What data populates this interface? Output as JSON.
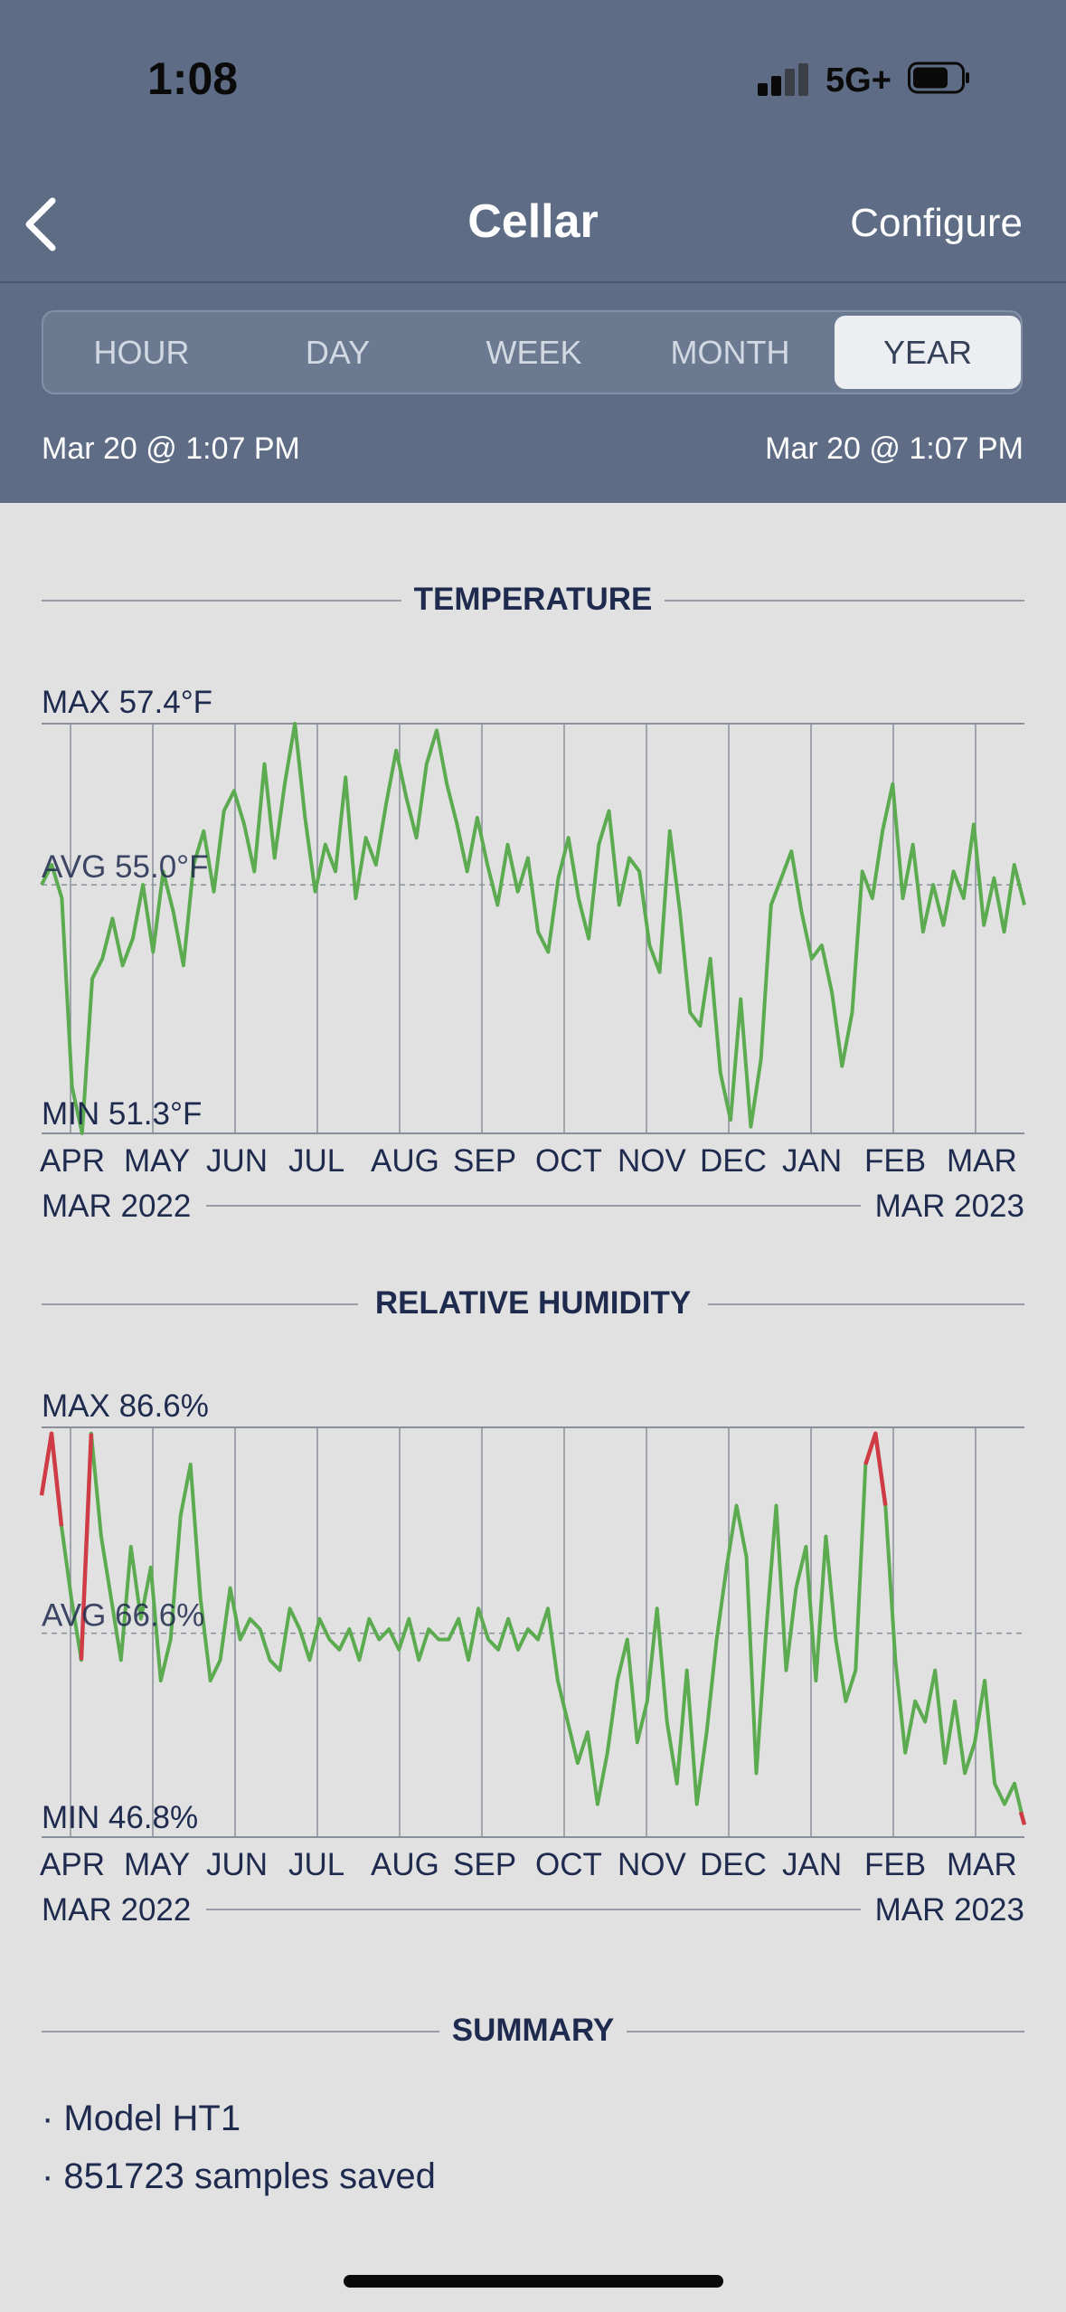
{
  "status": {
    "time": "1:08",
    "network": "5G+"
  },
  "nav": {
    "title": "Cellar",
    "configure": "Configure"
  },
  "tabs": [
    {
      "label": "HOUR"
    },
    {
      "label": "DAY"
    },
    {
      "label": "WEEK"
    },
    {
      "label": "MONTH"
    },
    {
      "label": "YEAR",
      "active": true
    }
  ],
  "range": {
    "start": "Mar 20 @ 1:07 PM",
    "end": "Mar 20 @ 1:07 PM"
  },
  "months": [
    "APR",
    "MAY",
    "JUN",
    "JUL",
    "AUG",
    "SEP",
    "OCT",
    "NOV",
    "DEC",
    "JAN",
    "FEB",
    "MAR"
  ],
  "period": {
    "start": "MAR 2022",
    "end": "MAR 2023"
  },
  "colors": {
    "line": "#5cab51",
    "alert": "#cf3c45",
    "header": "#5e6d85"
  },
  "sections": {
    "temperature": "TEMPERATURE",
    "humidity": "RELATIVE HUMIDITY",
    "summary": "SUMMARY"
  },
  "chart_data": [
    {
      "type": "line",
      "title": "TEMPERATURE",
      "max_label": "MAX 57.4°F",
      "avg_label": "AVG 55.0°F",
      "min_label": "MIN 51.3°F",
      "ylim": [
        51.3,
        57.4
      ],
      "avg": 55.0,
      "x_label_start": "MAR 2022",
      "x_label_end": "MAR 2023",
      "months": [
        "APR",
        "MAY",
        "JUN",
        "JUL",
        "AUG",
        "SEP",
        "OCT",
        "NOV",
        "DEC",
        "JAN",
        "FEB",
        "MAR"
      ],
      "values": [
        55.0,
        55.3,
        54.8,
        52.0,
        51.3,
        53.6,
        53.9,
        54.5,
        53.8,
        54.2,
        55.0,
        54.0,
        55.2,
        54.6,
        53.8,
        55.3,
        55.8,
        54.9,
        56.1,
        56.4,
        55.9,
        55.2,
        56.8,
        55.4,
        56.5,
        57.4,
        56.0,
        54.9,
        55.6,
        55.2,
        56.6,
        54.8,
        55.7,
        55.3,
        56.2,
        57.0,
        56.3,
        55.7,
        56.8,
        57.3,
        56.5,
        55.9,
        55.2,
        56.0,
        55.3,
        54.7,
        55.6,
        54.9,
        55.4,
        54.3,
        54.0,
        55.1,
        55.7,
        54.8,
        54.2,
        55.6,
        56.1,
        54.7,
        55.4,
        55.2,
        54.1,
        53.7,
        55.8,
        54.6,
        53.1,
        52.9,
        53.9,
        52.2,
        51.5,
        53.3,
        51.4,
        52.4,
        54.7,
        55.1,
        55.5,
        54.6,
        53.9,
        54.1,
        53.4,
        52.3,
        53.1,
        55.2,
        54.8,
        55.8,
        56.5,
        54.8,
        55.6,
        54.3,
        55.0,
        54.4,
        55.2,
        54.8,
        55.9,
        54.4,
        55.1,
        54.3,
        55.3,
        54.7
      ],
      "alerts": []
    },
    {
      "type": "line",
      "title": "RELATIVE HUMIDITY",
      "max_label": "MAX 86.6%",
      "avg_label": "AVG 66.6%",
      "min_label": "MIN 46.8%",
      "ylim": [
        46.8,
        86.6
      ],
      "avg": 66.6,
      "x_label_start": "MAR 2022",
      "x_label_end": "MAR 2023",
      "months": [
        "APR",
        "MAY",
        "JUN",
        "JUL",
        "AUG",
        "SEP",
        "OCT",
        "NOV",
        "DEC",
        "JAN",
        "FEB",
        "MAR"
      ],
      "values": [
        80,
        86,
        77,
        70,
        64,
        86,
        76,
        70,
        64,
        75,
        68,
        73,
        62,
        66,
        78,
        83,
        70,
        62,
        64,
        71,
        66,
        68,
        67,
        64,
        63,
        69,
        67,
        64,
        68,
        66,
        65,
        67,
        64,
        68,
        66,
        67,
        65,
        68,
        64,
        67,
        66,
        66,
        68,
        64,
        69,
        66,
        65,
        68,
        65,
        67,
        66,
        69,
        62,
        58,
        54,
        57,
        50,
        55,
        62,
        66,
        56,
        60,
        69,
        58,
        52,
        63,
        50,
        57,
        66,
        73,
        79,
        74,
        53,
        67,
        79,
        63,
        71,
        75,
        62,
        76,
        66,
        60,
        63,
        83,
        86,
        79,
        64,
        55,
        60,
        58,
        63,
        54,
        60,
        53,
        56,
        62,
        52,
        50,
        52,
        48
      ],
      "alerts": [
        [
          0,
          2
        ],
        [
          4,
          5
        ],
        [
          83,
          85
        ],
        [
          99,
          99
        ]
      ]
    }
  ],
  "summary": {
    "items": [
      "· Model HT1",
      "· 851723 samples saved"
    ]
  }
}
